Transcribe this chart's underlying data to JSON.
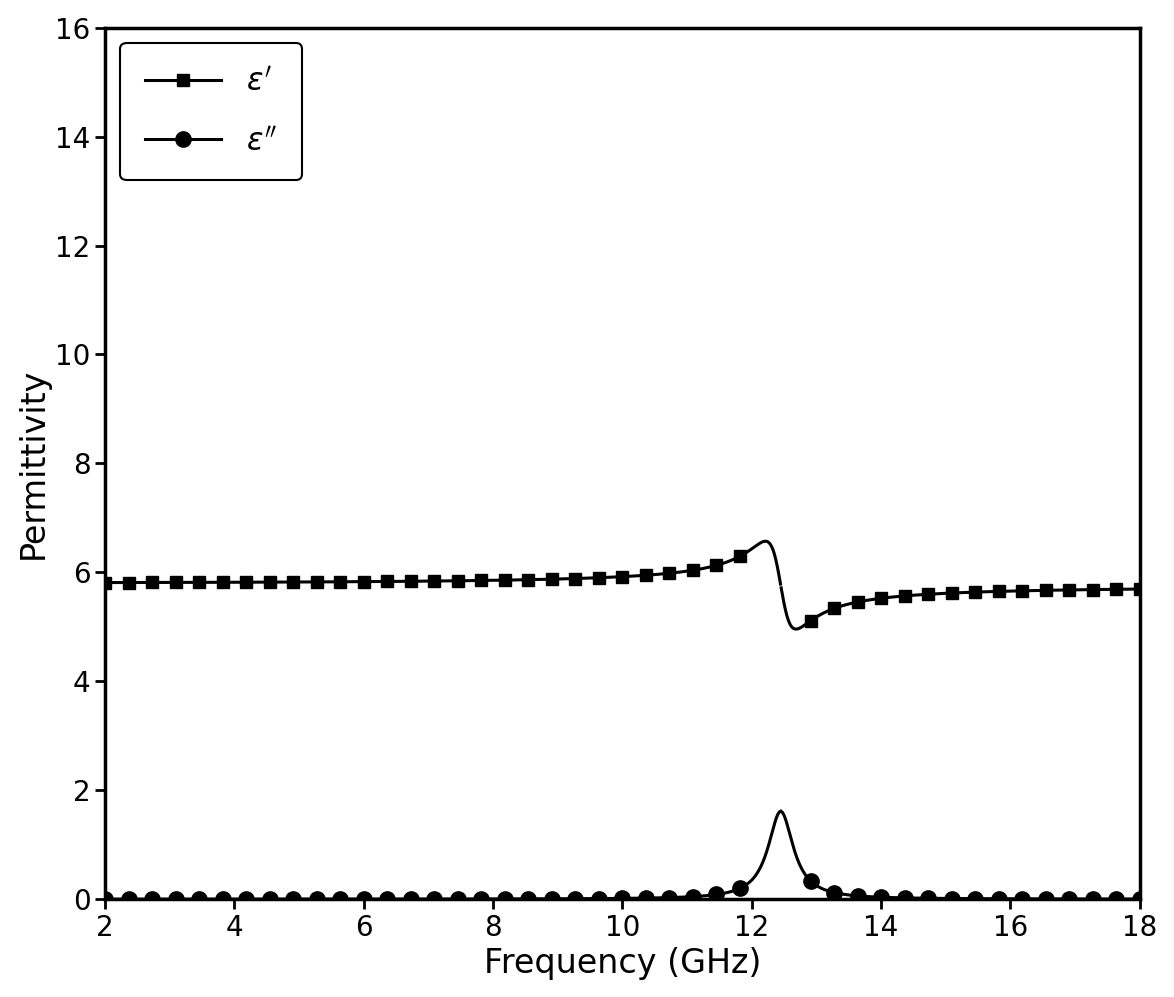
{
  "xlabel": "Frequency (GHz)",
  "ylabel": "Permittivity",
  "xlim": [
    2,
    18
  ],
  "ylim": [
    0,
    16
  ],
  "yticks": [
    0,
    2,
    4,
    6,
    8,
    10,
    12,
    14,
    16
  ],
  "xticks": [
    2,
    4,
    6,
    8,
    10,
    12,
    14,
    16,
    18
  ],
  "line_color": "#000000",
  "background_color": "#ffffff",
  "resonance_freq": 12.45,
  "eps_inf": 5.75,
  "A_real": 9.5,
  "gamma_real": 0.038,
  "A_imag": 0.35,
  "gamma_imag": 0.038,
  "linewidth": 2.2,
  "marker_size_square": 9,
  "marker_size_circle": 11,
  "n_markers": 45,
  "legend_fontsize": 22,
  "tick_labelsize": 20,
  "axis_labelsize": 24,
  "spine_linewidth": 2.5
}
